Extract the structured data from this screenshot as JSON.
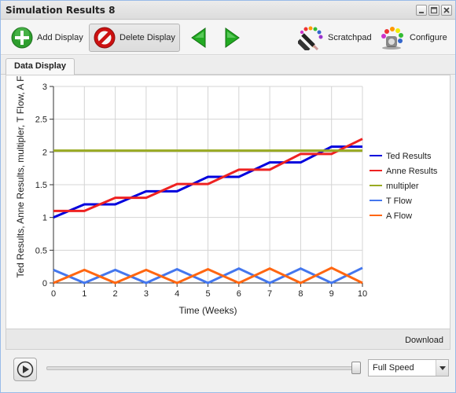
{
  "window": {
    "title": "Simulation Results 8"
  },
  "toolbar": {
    "add_display": "Add Display",
    "delete_display": "Delete Display",
    "scratchpad": "Scratchpad",
    "configure": "Configure"
  },
  "tabs": [
    {
      "label": "Data Display"
    }
  ],
  "footer": {
    "download": "Download"
  },
  "playback": {
    "speed": "Full Speed",
    "slider_position": 1.0
  },
  "colors": {
    "ted": "#0000dd",
    "anne": "#ee2222",
    "multiplier": "#99aa22",
    "tflow": "#4477ee",
    "aflow": "#ff6611",
    "add_icon": "#2e9e2e",
    "delete_icon": "#cc1111",
    "nav_arrow": "#22aa22"
  },
  "chart_data": {
    "type": "line",
    "xlabel": "Time (Weeks)",
    "ylabel": "Ted Results, Anne Results, multipler, T Flow, A F",
    "xlim": [
      0,
      10
    ],
    "ylim": [
      0,
      3
    ],
    "x_ticks": [
      "0",
      "1",
      "2",
      "3",
      "4",
      "5",
      "6",
      "7",
      "8",
      "9",
      "10"
    ],
    "y_ticks": [
      "0",
      "0.5",
      "1",
      "1.5",
      "2",
      "2.5",
      "3"
    ],
    "grid": true,
    "legend_position": "right",
    "series": [
      {
        "name": "Ted Results",
        "color": "#0000dd",
        "x": [
          0,
          1,
          2,
          3,
          4,
          5,
          6,
          7,
          8,
          9,
          10
        ],
        "y": [
          1.0,
          1.2,
          1.2,
          1.4,
          1.4,
          1.62,
          1.62,
          1.84,
          1.84,
          2.08,
          2.08
        ]
      },
      {
        "name": "Anne Results",
        "color": "#ee2222",
        "x": [
          0,
          1,
          2,
          3,
          4,
          5,
          6,
          7,
          8,
          9,
          10
        ],
        "y": [
          1.1,
          1.1,
          1.3,
          1.3,
          1.51,
          1.51,
          1.73,
          1.73,
          1.97,
          1.97,
          2.2
        ]
      },
      {
        "name": "multipler",
        "color": "#99aa22",
        "x": [
          0,
          10
        ],
        "y": [
          2.02,
          2.02
        ]
      },
      {
        "name": "T Flow",
        "color": "#4477ee",
        "x": [
          0,
          1,
          2,
          3,
          4,
          5,
          6,
          7,
          8,
          9,
          10
        ],
        "y": [
          0.2,
          0,
          0.2,
          0,
          0.21,
          0,
          0.22,
          0,
          0.22,
          0,
          0.23
        ]
      },
      {
        "name": "A Flow",
        "color": "#ff6611",
        "x": [
          0,
          1,
          2,
          3,
          4,
          5,
          6,
          7,
          8,
          9,
          10
        ],
        "y": [
          0,
          0.2,
          0,
          0.2,
          0,
          0.21,
          0,
          0.22,
          0,
          0.23,
          0
        ]
      }
    ]
  }
}
